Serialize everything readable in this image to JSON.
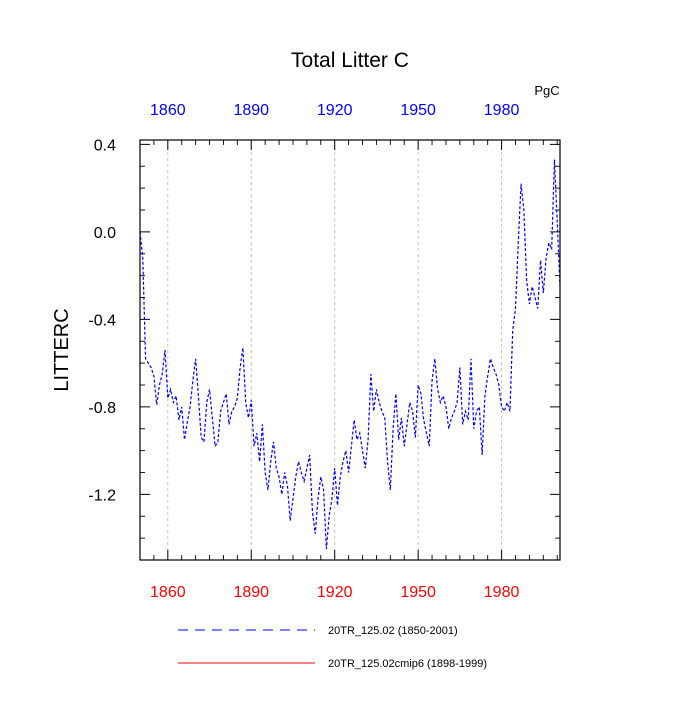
{
  "chart_data": {
    "type": "line",
    "title": "Total Litter C",
    "units": "PgC",
    "ylabel": "LITTERC",
    "xlabel": "",
    "xlim": [
      1850,
      2001
    ],
    "ylim": [
      -1.5,
      0.42
    ],
    "x_ticks": [
      1860,
      1890,
      1920,
      1950,
      1980
    ],
    "y_ticks": [
      0.4,
      0.0,
      -0.4,
      -0.8,
      -1.2
    ],
    "y_tick_labels": [
      "0.4",
      "0.0",
      "-0.4",
      "-0.8",
      "-1.2"
    ],
    "top_axis_color": "#0000ff",
    "bottom_axis_color": "#ff0000",
    "grid": "vertical dashed at x ticks",
    "series": [
      {
        "name": "20TR_125.02 (1850-2001)",
        "color": "#0000ff",
        "style": "dashed",
        "x": [
          1850,
          1851,
          1852,
          1853,
          1854,
          1855,
          1856,
          1857,
          1858,
          1859,
          1860,
          1861,
          1862,
          1863,
          1864,
          1865,
          1866,
          1867,
          1868,
          1869,
          1870,
          1871,
          1872,
          1873,
          1874,
          1875,
          1876,
          1877,
          1878,
          1879,
          1880,
          1881,
          1882,
          1883,
          1884,
          1885,
          1886,
          1887,
          1888,
          1889,
          1890,
          1891,
          1892,
          1893,
          1894,
          1895,
          1896,
          1897,
          1898,
          1899,
          1900,
          1901,
          1902,
          1903,
          1904,
          1905,
          1906,
          1907,
          1908,
          1909,
          1910,
          1911,
          1912,
          1913,
          1914,
          1915,
          1916,
          1917,
          1918,
          1919,
          1920,
          1921,
          1922,
          1923,
          1924,
          1925,
          1926,
          1927,
          1928,
          1929,
          1930,
          1931,
          1932,
          1933,
          1934,
          1935,
          1936,
          1937,
          1938,
          1939,
          1940,
          1941,
          1942,
          1943,
          1944,
          1945,
          1946,
          1947,
          1948,
          1949,
          1950,
          1951,
          1952,
          1953,
          1954,
          1955,
          1956,
          1957,
          1958,
          1959,
          1960,
          1961,
          1962,
          1963,
          1964,
          1965,
          1966,
          1967,
          1968,
          1969,
          1970,
          1971,
          1972,
          1973,
          1974,
          1975,
          1976,
          1977,
          1978,
          1979,
          1980,
          1981,
          1982,
          1983,
          1984,
          1985,
          1986,
          1987,
          1988,
          1989,
          1990,
          1991,
          1992,
          1993,
          1994,
          1995,
          1996,
          1997,
          1998,
          1999,
          2000,
          2001
        ],
        "y": [
          0.0,
          -0.12,
          -0.58,
          -0.6,
          -0.62,
          -0.66,
          -0.79,
          -0.7,
          -0.65,
          -0.54,
          -0.76,
          -0.72,
          -0.78,
          -0.75,
          -0.86,
          -0.8,
          -0.95,
          -0.87,
          -0.8,
          -0.68,
          -0.58,
          -0.75,
          -0.94,
          -0.96,
          -0.78,
          -0.72,
          -0.85,
          -0.98,
          -0.96,
          -0.82,
          -0.78,
          -0.74,
          -0.88,
          -0.82,
          -0.8,
          -0.76,
          -0.62,
          -0.53,
          -0.78,
          -0.85,
          -0.77,
          -0.98,
          -0.92,
          -1.05,
          -0.88,
          -1.1,
          -1.18,
          -1.05,
          -0.96,
          -1.08,
          -1.12,
          -1.2,
          -1.1,
          -1.16,
          -1.32,
          -1.22,
          -1.12,
          -1.05,
          -1.1,
          -1.14,
          -1.08,
          -1.02,
          -1.28,
          -1.38,
          -1.22,
          -1.12,
          -1.18,
          -1.45,
          -1.3,
          -1.22,
          -1.08,
          -1.25,
          -1.12,
          -1.05,
          -1.0,
          -1.1,
          -0.98,
          -0.86,
          -0.95,
          -0.92,
          -1.0,
          -1.08,
          -0.95,
          -0.65,
          -0.82,
          -0.72,
          -0.78,
          -0.82,
          -0.85,
          -1.05,
          -1.18,
          -0.9,
          -0.74,
          -0.95,
          -0.85,
          -0.98,
          -0.88,
          -0.78,
          -0.82,
          -0.94,
          -0.7,
          -0.74,
          -0.86,
          -0.92,
          -0.98,
          -0.68,
          -0.58,
          -0.72,
          -0.78,
          -0.75,
          -0.8,
          -0.9,
          -0.85,
          -0.82,
          -0.78,
          -0.62,
          -0.88,
          -0.82,
          -0.86,
          -0.58,
          -0.9,
          -0.82,
          -0.8,
          -1.02,
          -0.75,
          -0.66,
          -0.58,
          -0.62,
          -0.65,
          -0.7,
          -0.8,
          -0.82,
          -0.78,
          -0.82,
          -0.45,
          -0.35,
          -0.05,
          0.22,
          0.1,
          -0.22,
          -0.33,
          -0.25,
          -0.3,
          -0.35,
          -0.13,
          -0.28,
          -0.12,
          -0.05,
          -0.08,
          0.33,
          0.05,
          -0.25
        ]
      },
      {
        "name": "20TR_125.02cmip6 (1898-1999)",
        "color": "#ff0000",
        "style": "solid",
        "x": [],
        "y": []
      }
    ]
  }
}
